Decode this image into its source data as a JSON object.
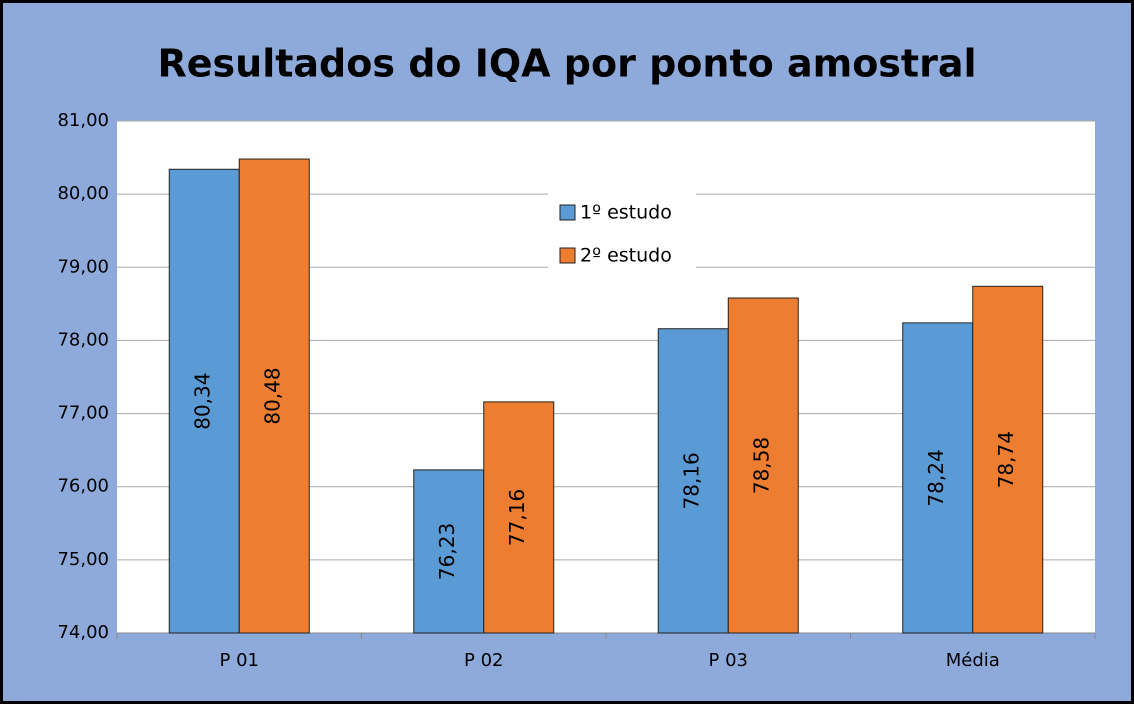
{
  "chart_data": {
    "type": "bar",
    "title": "Resultados do IQA por ponto amostral",
    "categories": [
      "P 01",
      "P 02",
      "P 03",
      "Média"
    ],
    "series": [
      {
        "name": "1º estudo",
        "color": "#5b9bd5",
        "values": [
          80.34,
          76.23,
          78.16,
          78.24
        ],
        "value_labels": [
          "80,34",
          "76,23",
          "78,16",
          "78,24"
        ]
      },
      {
        "name": "2º estudo",
        "color": "#ed7d31",
        "values": [
          80.48,
          77.16,
          78.58,
          78.74
        ],
        "value_labels": [
          "80,48",
          "77,16",
          "78,58",
          "78,74"
        ]
      }
    ],
    "ylim": [
      74,
      81
    ],
    "yticks": [
      {
        "value": 74,
        "label": "74,00"
      },
      {
        "value": 75,
        "label": "75,00"
      },
      {
        "value": 76,
        "label": "76,00"
      },
      {
        "value": 77,
        "label": "77,00"
      },
      {
        "value": 78,
        "label": "78,00"
      },
      {
        "value": 79,
        "label": "79,00"
      },
      {
        "value": 80,
        "label": "80,00"
      },
      {
        "value": 81,
        "label": "81,00"
      }
    ],
    "grid": true
  }
}
